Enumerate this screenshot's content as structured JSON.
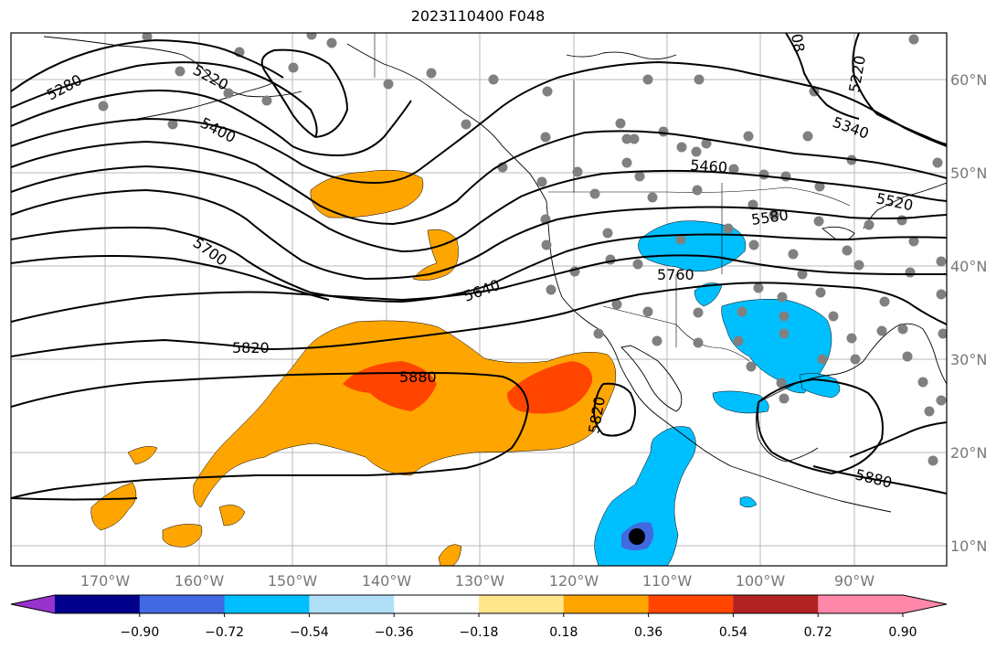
{
  "title": "2023110400 F048",
  "map": {
    "lon_ticks": [
      "170°W",
      "160°W",
      "150°W",
      "140°W",
      "130°W",
      "120°W",
      "110°W",
      "100°W",
      "90°W"
    ],
    "lat_ticks": [
      "60°N",
      "50°N",
      "40°N",
      "30°N",
      "20°N",
      "10°N"
    ],
    "contour_labels": [
      "5220",
      "5280",
      "5400",
      "5460",
      "5520",
      "5580",
      "5640",
      "5700",
      "5760",
      "5820",
      "5880",
      "5340",
      "5220",
      "5820",
      "5880",
      "08"
    ],
    "colors": {
      "pos_036": "#ffa500",
      "pos_054": "#ff4500",
      "neg_054": "#00bfff",
      "neg_072": "#4169e1",
      "station": "#808080",
      "marker": "#000000"
    }
  },
  "colorbar": {
    "tick_labels": [
      "−0.90",
      "−0.72",
      "−0.54",
      "−0.36",
      "−0.18",
      "0.18",
      "0.36",
      "0.54",
      "0.72",
      "0.90"
    ],
    "colors": [
      "#9932cc",
      "#00008b",
      "#4169e1",
      "#00bfff",
      "#b0e0f8",
      "#ffffff",
      "#ffe68a",
      "#ffa500",
      "#ff4500",
      "#b22222",
      "#ff88aa",
      "#ffffff"
    ]
  }
}
